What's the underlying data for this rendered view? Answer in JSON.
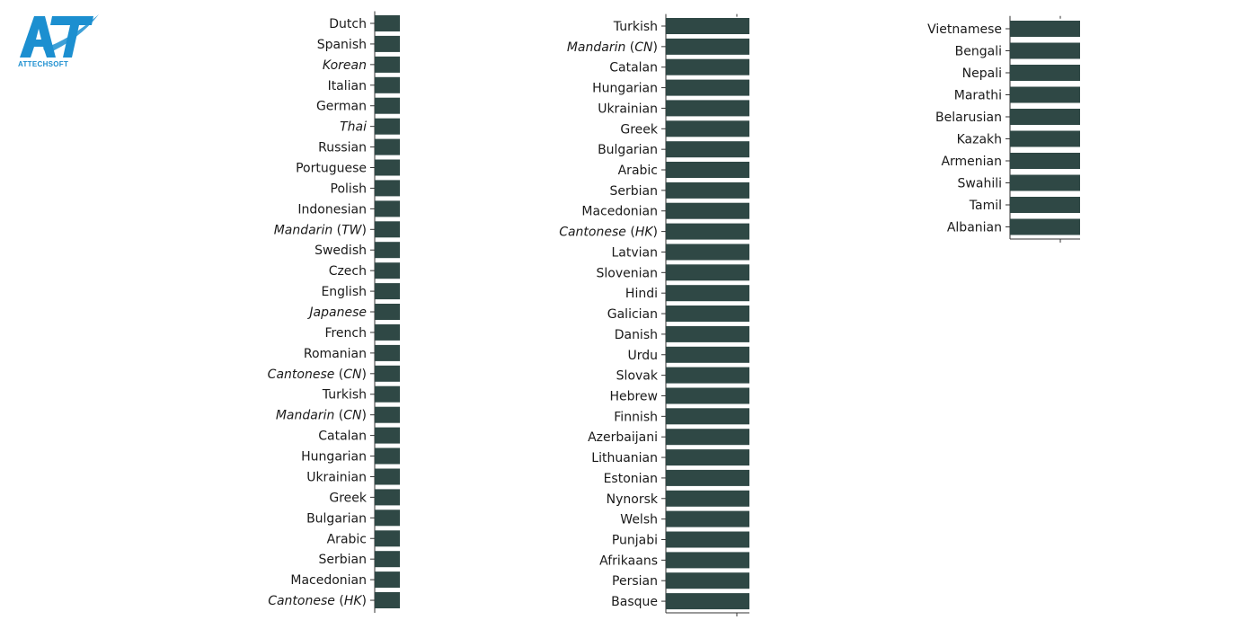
{
  "logo": {
    "brand": "ATTECHSOFT",
    "brand_color": "#1c8fd0"
  },
  "chart_data": [
    {
      "type": "bar",
      "orientation": "horizontal",
      "bar_color": "#2f4845",
      "grid": false,
      "categories": [
        {
          "parts": [
            {
              "t": "Dutch",
              "i": false
            }
          ]
        },
        {
          "parts": [
            {
              "t": "Spanish",
              "i": false
            }
          ]
        },
        {
          "parts": [
            {
              "t": "Korean",
              "i": true
            }
          ]
        },
        {
          "parts": [
            {
              "t": "Italian",
              "i": false
            }
          ]
        },
        {
          "parts": [
            {
              "t": "German",
              "i": false
            }
          ]
        },
        {
          "parts": [
            {
              "t": "Thai",
              "i": true
            }
          ]
        },
        {
          "parts": [
            {
              "t": "Russian",
              "i": false
            }
          ]
        },
        {
          "parts": [
            {
              "t": "Portuguese",
              "i": false
            }
          ]
        },
        {
          "parts": [
            {
              "t": "Polish",
              "i": false
            }
          ]
        },
        {
          "parts": [
            {
              "t": "Indonesian",
              "i": false
            }
          ]
        },
        {
          "parts": [
            {
              "t": "Mandarin",
              "i": true
            },
            {
              "t": " (",
              "i": false
            },
            {
              "t": "TW",
              "i": true
            },
            {
              "t": ")",
              "i": false
            }
          ]
        },
        {
          "parts": [
            {
              "t": "Swedish",
              "i": false
            }
          ]
        },
        {
          "parts": [
            {
              "t": "Czech",
              "i": false
            }
          ]
        },
        {
          "parts": [
            {
              "t": "English",
              "i": false
            }
          ]
        },
        {
          "parts": [
            {
              "t": "Japanese",
              "i": true
            }
          ]
        },
        {
          "parts": [
            {
              "t": "French",
              "i": false
            }
          ]
        },
        {
          "parts": [
            {
              "t": "Romanian",
              "i": false
            }
          ]
        },
        {
          "parts": [
            {
              "t": "Cantonese",
              "i": true
            },
            {
              "t": " (",
              "i": false
            },
            {
              "t": "CN",
              "i": true
            },
            {
              "t": ")",
              "i": false
            }
          ]
        },
        {
          "parts": [
            {
              "t": "Turkish",
              "i": false
            }
          ]
        },
        {
          "parts": [
            {
              "t": "Mandarin",
              "i": true
            },
            {
              "t": " (",
              "i": false
            },
            {
              "t": "CN",
              "i": true
            },
            {
              "t": ")",
              "i": false
            }
          ]
        },
        {
          "parts": [
            {
              "t": "Catalan",
              "i": false
            }
          ]
        },
        {
          "parts": [
            {
              "t": "Hungarian",
              "i": false
            }
          ]
        },
        {
          "parts": [
            {
              "t": "Ukrainian",
              "i": false
            }
          ]
        },
        {
          "parts": [
            {
              "t": "Greek",
              "i": false
            }
          ]
        },
        {
          "parts": [
            {
              "t": "Bulgarian",
              "i": false
            }
          ]
        },
        {
          "parts": [
            {
              "t": "Arabic",
              "i": false
            }
          ]
        },
        {
          "parts": [
            {
              "t": "Serbian",
              "i": false
            }
          ]
        },
        {
          "parts": [
            {
              "t": "Macedonian",
              "i": false
            }
          ]
        },
        {
          "parts": [
            {
              "t": "Cantonese",
              "i": true
            },
            {
              "t": " (",
              "i": false
            },
            {
              "t": "HK",
              "i": true
            },
            {
              "t": ")",
              "i": false
            }
          ]
        }
      ]
    },
    {
      "type": "bar",
      "orientation": "horizontal",
      "bar_color": "#2f4845",
      "grid": false,
      "categories": [
        {
          "parts": [
            {
              "t": "Turkish",
              "i": false
            }
          ]
        },
        {
          "parts": [
            {
              "t": "Mandarin",
              "i": true
            },
            {
              "t": " (",
              "i": false
            },
            {
              "t": "CN",
              "i": true
            },
            {
              "t": ")",
              "i": false
            }
          ]
        },
        {
          "parts": [
            {
              "t": "Catalan",
              "i": false
            }
          ]
        },
        {
          "parts": [
            {
              "t": "Hungarian",
              "i": false
            }
          ]
        },
        {
          "parts": [
            {
              "t": "Ukrainian",
              "i": false
            }
          ]
        },
        {
          "parts": [
            {
              "t": "Greek",
              "i": false
            }
          ]
        },
        {
          "parts": [
            {
              "t": "Bulgarian",
              "i": false
            }
          ]
        },
        {
          "parts": [
            {
              "t": "Arabic",
              "i": false
            }
          ]
        },
        {
          "parts": [
            {
              "t": "Serbian",
              "i": false
            }
          ]
        },
        {
          "parts": [
            {
              "t": "Macedonian",
              "i": false
            }
          ]
        },
        {
          "parts": [
            {
              "t": "Cantonese",
              "i": true
            },
            {
              "t": " (",
              "i": false
            },
            {
              "t": "HK",
              "i": true
            },
            {
              "t": ")",
              "i": false
            }
          ]
        },
        {
          "parts": [
            {
              "t": "Latvian",
              "i": false
            }
          ]
        },
        {
          "parts": [
            {
              "t": "Slovenian",
              "i": false
            }
          ]
        },
        {
          "parts": [
            {
              "t": "Hindi",
              "i": false
            }
          ]
        },
        {
          "parts": [
            {
              "t": "Galician",
              "i": false
            }
          ]
        },
        {
          "parts": [
            {
              "t": "Danish",
              "i": false
            }
          ]
        },
        {
          "parts": [
            {
              "t": "Urdu",
              "i": false
            }
          ]
        },
        {
          "parts": [
            {
              "t": "Slovak",
              "i": false
            }
          ]
        },
        {
          "parts": [
            {
              "t": "Hebrew",
              "i": false
            }
          ]
        },
        {
          "parts": [
            {
              "t": "Finnish",
              "i": false
            }
          ]
        },
        {
          "parts": [
            {
              "t": "Azerbaijani",
              "i": false
            }
          ]
        },
        {
          "parts": [
            {
              "t": "Lithuanian",
              "i": false
            }
          ]
        },
        {
          "parts": [
            {
              "t": "Estonian",
              "i": false
            }
          ]
        },
        {
          "parts": [
            {
              "t": "Nynorsk",
              "i": false
            }
          ]
        },
        {
          "parts": [
            {
              "t": "Welsh",
              "i": false
            }
          ]
        },
        {
          "parts": [
            {
              "t": "Punjabi",
              "i": false
            }
          ]
        },
        {
          "parts": [
            {
              "t": "Afrikaans",
              "i": false
            }
          ]
        },
        {
          "parts": [
            {
              "t": "Persian",
              "i": false
            }
          ]
        },
        {
          "parts": [
            {
              "t": "Basque",
              "i": false
            }
          ]
        }
      ]
    },
    {
      "type": "bar",
      "orientation": "horizontal",
      "bar_color": "#2f4845",
      "grid": false,
      "categories": [
        {
          "parts": [
            {
              "t": "Vietnamese",
              "i": false
            }
          ]
        },
        {
          "parts": [
            {
              "t": "Bengali",
              "i": false
            }
          ]
        },
        {
          "parts": [
            {
              "t": "Nepali",
              "i": false
            }
          ]
        },
        {
          "parts": [
            {
              "t": "Marathi",
              "i": false
            }
          ]
        },
        {
          "parts": [
            {
              "t": "Belarusian",
              "i": false
            }
          ]
        },
        {
          "parts": [
            {
              "t": "Kazakh",
              "i": false
            }
          ]
        },
        {
          "parts": [
            {
              "t": "Armenian",
              "i": false
            }
          ]
        },
        {
          "parts": [
            {
              "t": "Swahili",
              "i": false
            }
          ]
        },
        {
          "parts": [
            {
              "t": "Tamil",
              "i": false
            }
          ]
        },
        {
          "parts": [
            {
              "t": "Albanian",
              "i": false
            }
          ]
        }
      ]
    }
  ]
}
